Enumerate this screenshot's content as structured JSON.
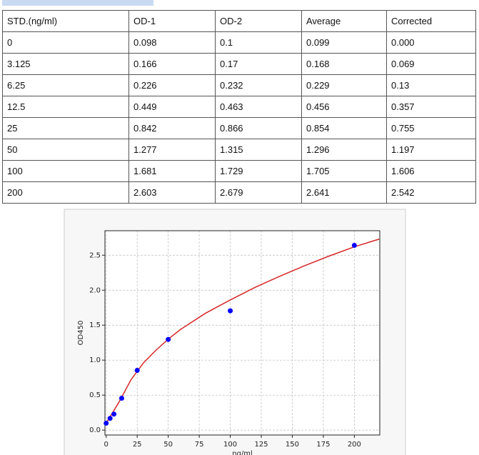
{
  "table": {
    "header": [
      "STD.(ng/ml)",
      "OD-1",
      "OD-2",
      "Average",
      "Corrected"
    ],
    "rows": [
      [
        "0",
        "0.098",
        "0.1",
        "0.099",
        "0.000"
      ],
      [
        "3.125",
        "0.166",
        "0.17",
        "0.168",
        "0.069"
      ],
      [
        "6.25",
        "0.226",
        "0.232",
        "0.229",
        "0.13"
      ],
      [
        "12.5",
        "0.449",
        "0.463",
        "0.456",
        "0.357"
      ],
      [
        "25",
        "0.842",
        "0.866",
        "0.854",
        "0.755"
      ],
      [
        "50",
        "1.277",
        "1.315",
        "1.296",
        "1.197"
      ],
      [
        "100",
        "1.681",
        "1.729",
        "1.705",
        "1.606"
      ],
      [
        "200",
        "2.603",
        "2.679",
        "2.641",
        "2.542"
      ]
    ]
  },
  "chart_data": {
    "type": "scatter",
    "x_label": "ng/ml",
    "y_label": "OD450",
    "xlim": [
      -1,
      220.5
    ],
    "ylim": [
      -0.07,
      2.85
    ],
    "xticks": [
      0,
      25,
      50,
      75,
      100,
      125,
      150,
      175,
      200
    ],
    "yticks": [
      {
        "value": 0,
        "label": "0.0"
      },
      0.5,
      {
        "value": 1,
        "label": "1.0"
      },
      1.5,
      {
        "value": 2,
        "label": "2.0"
      },
      2.5
    ],
    "grid": true,
    "series": [
      {
        "type": "scatter",
        "color": "#0000ff",
        "x": [
          0,
          3.125,
          6.25,
          12.5,
          25,
          50,
          100,
          200
        ],
        "values": [
          0.099,
          0.168,
          0.229,
          0.456,
          0.854,
          1.296,
          1.705,
          2.641
        ]
      },
      {
        "type": "line",
        "color": "#d62728",
        "x": [
          0,
          10,
          20,
          30,
          40,
          50,
          60,
          80,
          100,
          120,
          140,
          160,
          180,
          200,
          220
        ],
        "values": [
          0.1,
          0.39,
          0.72,
          0.96,
          1.14,
          1.3,
          1.44,
          1.67,
          1.86,
          2.04,
          2.2,
          2.35,
          2.49,
          2.62,
          2.73
        ]
      }
    ]
  }
}
